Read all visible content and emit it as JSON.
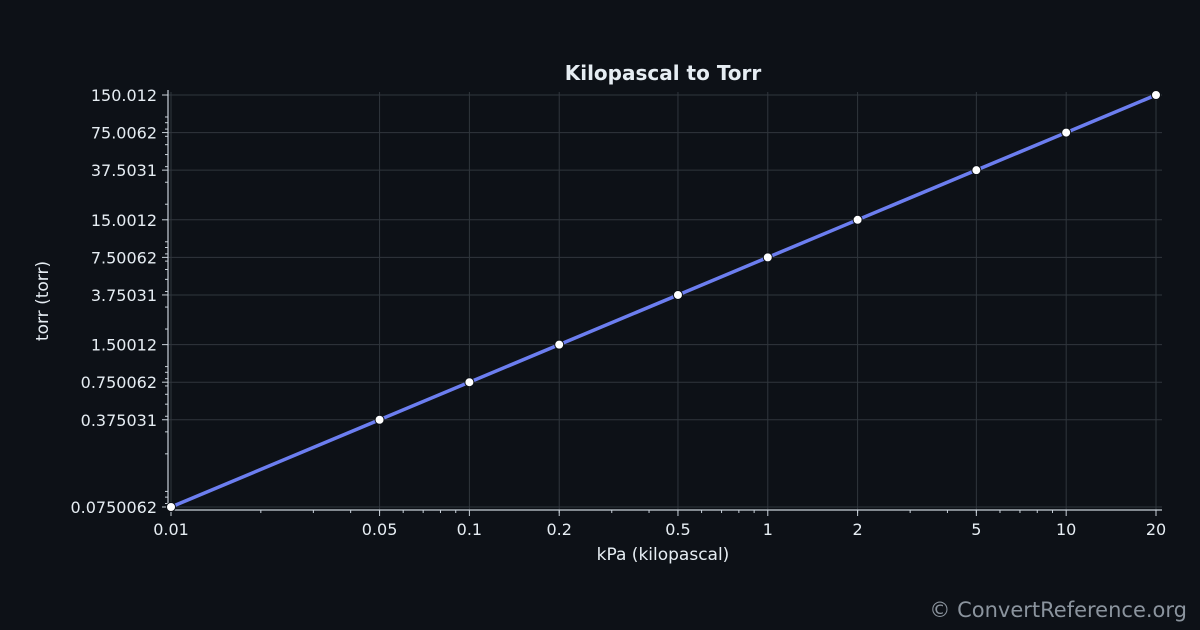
{
  "chart_data": {
    "type": "line",
    "title": "Kilopascal to Torr",
    "xlabel": "kPa (kilopascal)",
    "ylabel": "torr (torr)",
    "xscale": "log",
    "yscale": "log",
    "grid": true,
    "xlim": [
      0.01,
      20
    ],
    "ylim": [
      0.0750062,
      150.012
    ],
    "x_ticks": [
      "0.01",
      "0.05",
      "0.1",
      "0.2",
      "0.5",
      "1",
      "2",
      "5",
      "10",
      "20"
    ],
    "y_ticks": [
      "0.0750062",
      "0.375031",
      "0.750062",
      "1.50012",
      "3.75031",
      "7.50062",
      "15.0012",
      "37.5031",
      "75.0062",
      "150.012"
    ],
    "series": [
      {
        "x": [
          0.01,
          0.05,
          0.1,
          0.2,
          0.5,
          1,
          2,
          5,
          10,
          20
        ],
        "y": [
          0.0750062,
          0.375031,
          0.750062,
          1.50012,
          3.75031,
          7.50062,
          15.0012,
          37.5031,
          75.0062,
          150.012
        ],
        "color": "#6c7ef0"
      }
    ]
  },
  "footer": {
    "watermark": "© ConvertReference.org"
  },
  "colors": {
    "background": "#0d1117",
    "line": "#6c7ef0",
    "point": "#ffffff",
    "grid": "#30363d",
    "text": "#e6edf3"
  }
}
